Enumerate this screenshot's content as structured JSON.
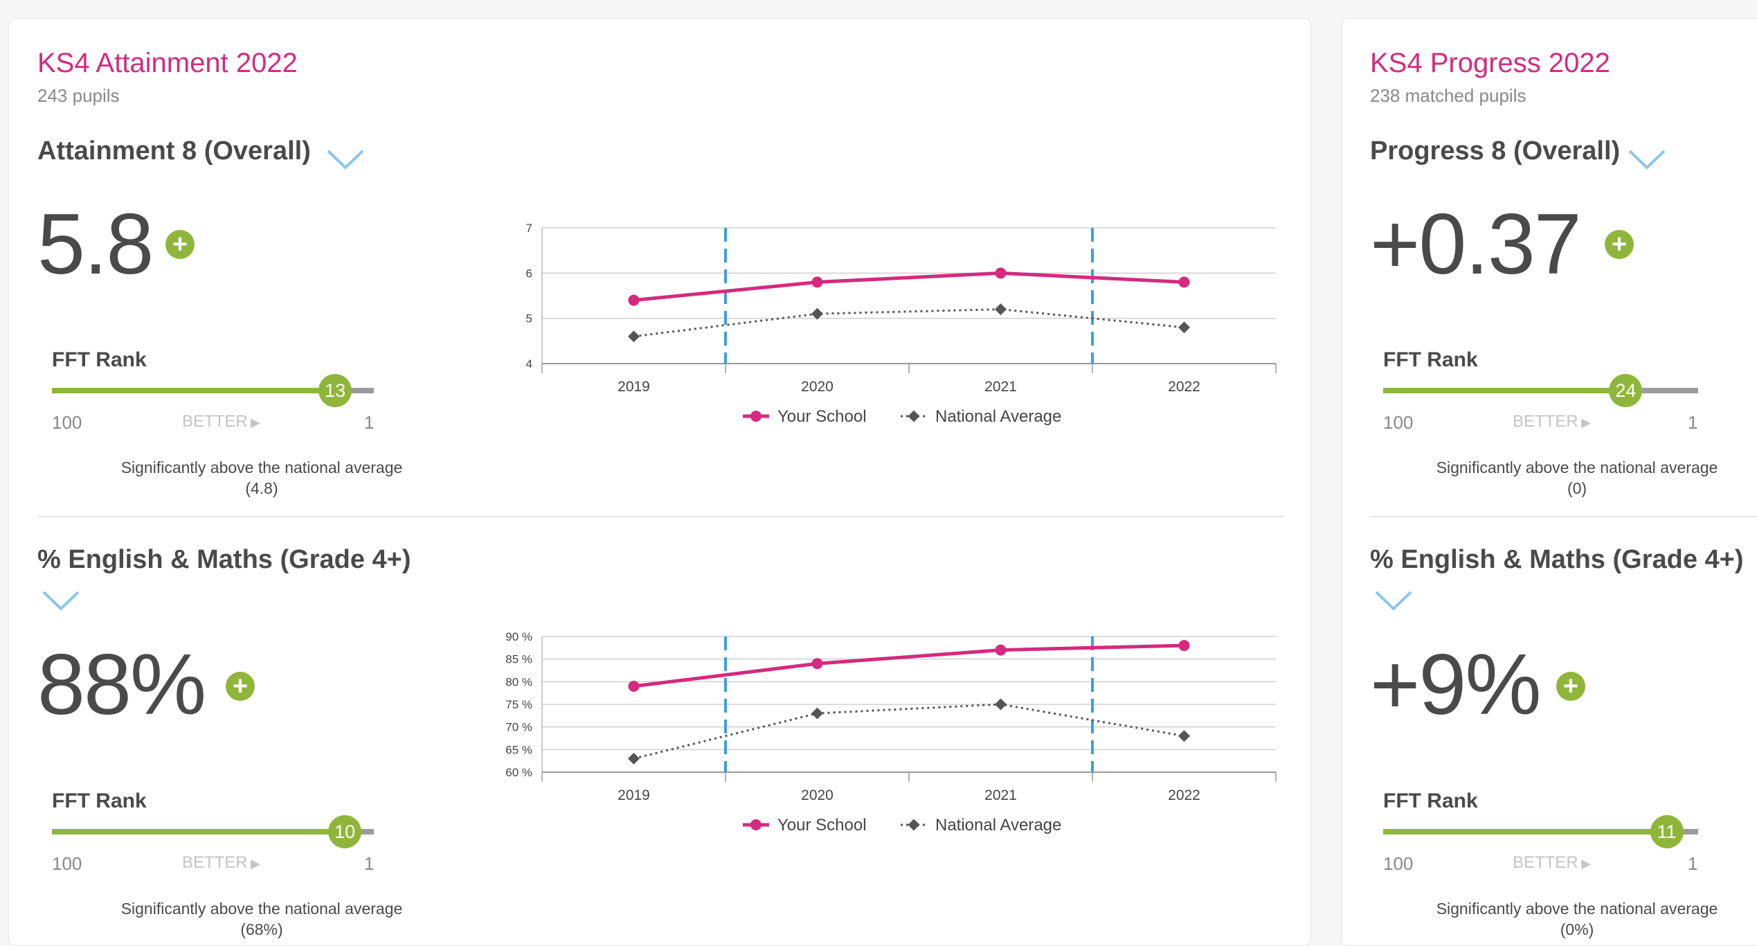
{
  "attainment": {
    "title": "KS4 Attainment 2022",
    "subtitle": "243 pupils",
    "a8": {
      "title": "Attainment 8 (Overall)",
      "value": "5.8",
      "plus": "+",
      "rank_label": "FFT Rank",
      "rank": "13",
      "rank_fraction": 0.88,
      "scale_low": "100",
      "scale_high": "1",
      "better": "BETTER",
      "note_line1": "Significantly above the national average",
      "note_line2": "(4.8)"
    },
    "em": {
      "title": "% English & Maths (Grade 4+)",
      "value": "88%",
      "plus": "+",
      "rank_label": "FFT Rank",
      "rank": "10",
      "rank_fraction": 0.91,
      "scale_low": "100",
      "scale_high": "1",
      "better": "BETTER",
      "note_line1": "Significantly above the national average",
      "note_line2": "(68%)"
    }
  },
  "progress": {
    "title": "KS4 Progress 2022",
    "subtitle": "238 matched pupils",
    "p8": {
      "title": "Progress 8 (Overall)",
      "value": "+0.37",
      "plus": "+",
      "rank_label": "FFT Rank",
      "rank": "24",
      "rank_fraction": 0.77,
      "scale_low": "100",
      "scale_high": "1",
      "better": "BETTER",
      "note_line1": "Significantly above the national average",
      "note_line2": "(0)"
    },
    "em": {
      "title": "% English & Maths (Grade 4+)",
      "value": "+9%",
      "plus": "+",
      "rank_label": "FFT Rank",
      "rank": "11",
      "rank_fraction": 0.9,
      "scale_low": "100",
      "scale_high": "1",
      "better": "BETTER",
      "note_line1": "Significantly above the national average",
      "note_line2": "(0%)"
    }
  },
  "colors": {
    "accent": "#d42a7f",
    "green": "#8fb63b",
    "national": "#555555",
    "covid_marker": "#3aa0dc"
  },
  "chart_data": [
    {
      "type": "line",
      "categories": [
        "2019",
        "2020",
        "2021",
        "2022"
      ],
      "series": [
        {
          "name": "Your School",
          "values": [
            5.4,
            5.8,
            6.0,
            5.8
          ],
          "color": "#d42a7f"
        },
        {
          "name": "National Average",
          "values": [
            4.6,
            5.1,
            5.2,
            4.8
          ],
          "color": "#555555"
        }
      ],
      "ylim": [
        4,
        7
      ],
      "yticks": [
        "4",
        "5",
        "6",
        "7"
      ],
      "grid": true,
      "legend": "bottom"
    },
    {
      "type": "line",
      "categories": [
        "2019",
        "2020",
        "2021",
        "2022"
      ],
      "series": [
        {
          "name": "Your School",
          "values": [
            79,
            84,
            87,
            88
          ],
          "color": "#d42a7f"
        },
        {
          "name": "National Average",
          "values": [
            63,
            73,
            75,
            68
          ],
          "color": "#555555"
        }
      ],
      "ylim": [
        60,
        90
      ],
      "yticks": [
        "60 %",
        "65 %",
        "70 %",
        "75 %",
        "80 %",
        "85 %",
        "90 %"
      ],
      "grid": true,
      "legend": "bottom"
    }
  ]
}
